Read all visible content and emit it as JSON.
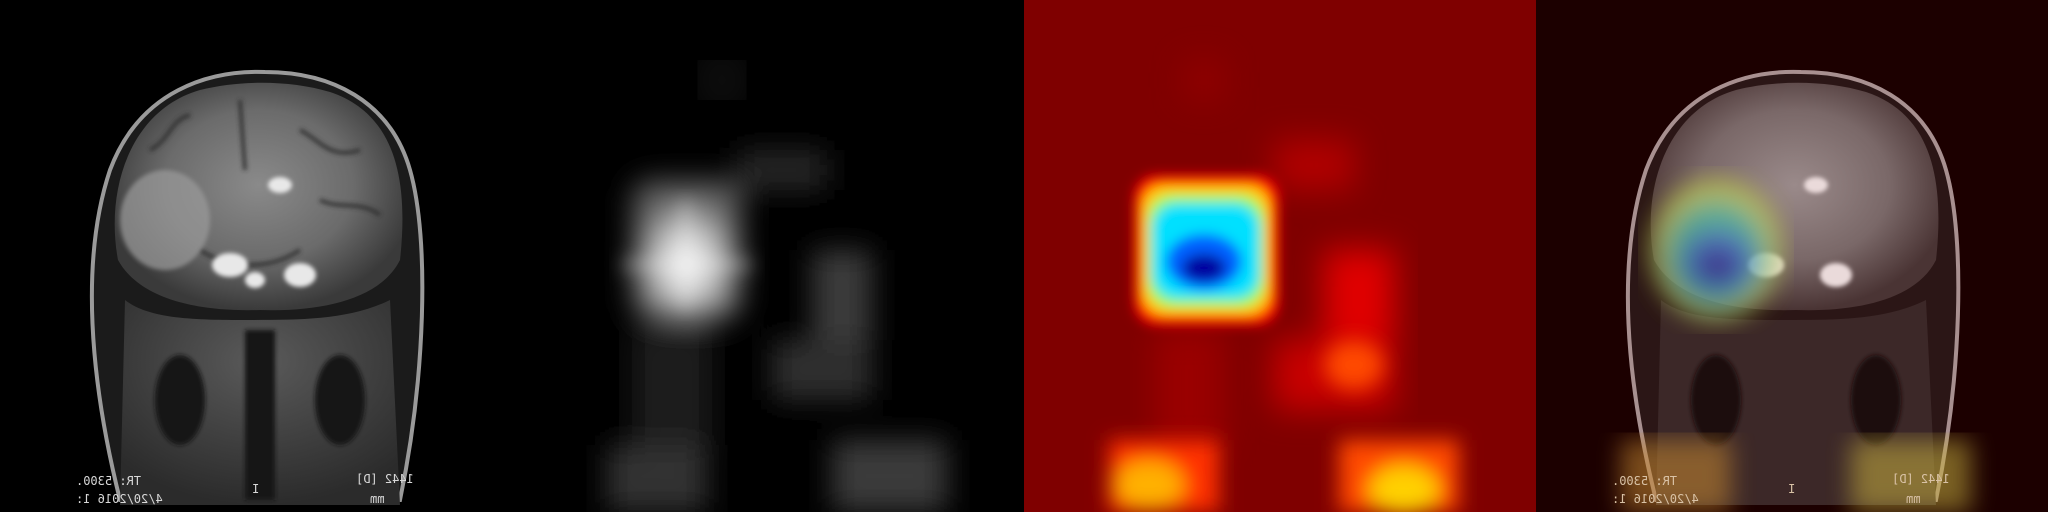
{
  "panels": [
    {
      "id": "mri",
      "overlay": {
        "left_top": "1442 [D]",
        "left_bottom": "mm",
        "center": "I",
        "right_top": "TR: 5300.",
        "right_bottom": "4/20/2016 1:"
      }
    },
    {
      "id": "activation-map"
    },
    {
      "id": "jet-heatmap"
    },
    {
      "id": "blended-overlay",
      "overlay": {
        "left_top": "1442 [D]",
        "left_bottom": "mm",
        "center": "I",
        "right_top": "TR: 5300.",
        "right_bottom": "4/20/2016 1:"
      }
    }
  ],
  "colors": {
    "background": "#000000",
    "heat_low": "#7f0000",
    "heat_mid": "#ff2a00",
    "heat_high": "#00c8ff",
    "heat_peak": "#000099"
  }
}
